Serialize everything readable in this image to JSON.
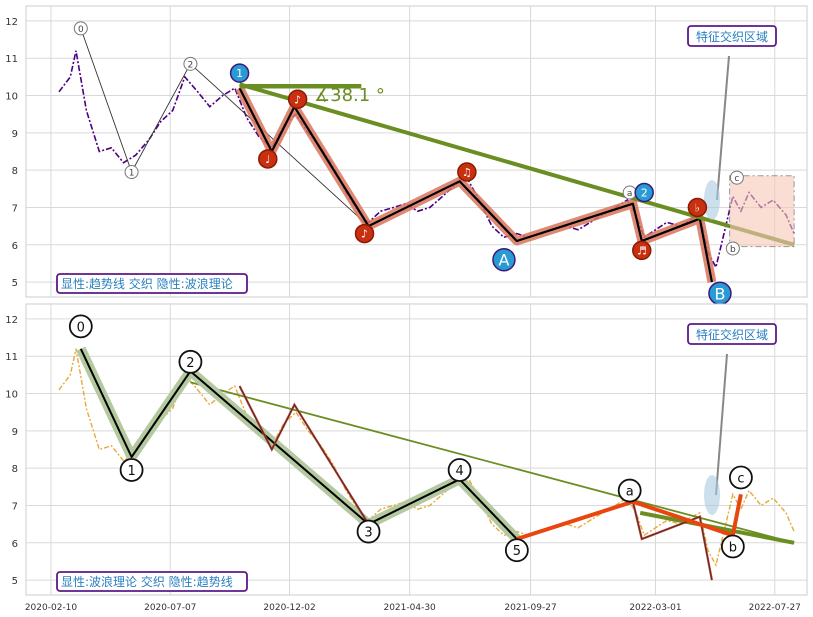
{
  "chart_data": [
    {
      "type": "line",
      "panel": "top",
      "ylim": [
        4.6,
        12.4
      ],
      "y_ticks": [
        5,
        6,
        7,
        8,
        9,
        10,
        11,
        12
      ],
      "grid": true,
      "colors": {
        "price": "#4b0082",
        "trend": "#6b8e23",
        "wave": "#000000",
        "wave_band": "#d9745c"
      },
      "label_box": "显性:趋势线 交织 隐性:波浪理论",
      "region_box": "特征交织区域",
      "angle_label": "∡38.1 °",
      "trend_line": [
        {
          "x": "2020-10-01",
          "y": 10.3
        },
        {
          "x": "2022-08-20",
          "y": 6.0
        }
      ],
      "angle_ray": [
        {
          "x": "2020-10-01",
          "y": 10.25
        },
        {
          "x": "2021-03-01",
          "y": 10.25
        }
      ],
      "wave_path": [
        {
          "x": "2020-10-01",
          "y": 10.2
        },
        {
          "x": "2020-11-10",
          "y": 8.5
        },
        {
          "x": "2020-12-08",
          "y": 9.7
        },
        {
          "x": "2021-03-10",
          "y": 6.5
        },
        {
          "x": "2021-07-01",
          "y": 7.7
        },
        {
          "x": "2021-09-10",
          "y": 6.1
        },
        {
          "x": "2022-02-01",
          "y": 7.1
        },
        {
          "x": "2022-02-12",
          "y": 6.1
        },
        {
          "x": "2022-04-25",
          "y": 6.7
        },
        {
          "x": "2022-05-10",
          "y": 5.0
        }
      ],
      "minor_markers": [
        {
          "label": "0",
          "x": "2020-03-18",
          "y": 11.8
        },
        {
          "label": "1",
          "x": "2020-05-20",
          "y": 7.95
        },
        {
          "label": "2",
          "x": "2020-08-01",
          "y": 10.85
        },
        {
          "label": "a",
          "x": "2022-01-28",
          "y": 7.4
        },
        {
          "label": "c",
          "x": "2022-06-10",
          "y": 7.8
        },
        {
          "label": "b",
          "x": "2022-06-05",
          "y": 5.9
        }
      ],
      "markers": [
        {
          "label": "1",
          "kind": "blue",
          "x": "2020-10-01",
          "y": 10.6
        },
        {
          "label": "♩",
          "kind": "red",
          "x": "2020-11-05",
          "y": 8.3
        },
        {
          "label": "♪",
          "kind": "red",
          "x": "2020-12-12",
          "y": 9.9
        },
        {
          "label": "♪",
          "kind": "red",
          "x": "2021-03-05",
          "y": 6.3
        },
        {
          "label": "♫",
          "kind": "red",
          "x": "2021-07-10",
          "y": 7.95
        },
        {
          "label": "A",
          "kind": "blue_big",
          "x": "2021-08-25",
          "y": 5.6
        },
        {
          "label": "2",
          "kind": "blue",
          "x": "2022-02-15",
          "y": 7.4
        },
        {
          "label": "♬",
          "kind": "red",
          "x": "2022-02-12",
          "y": 5.85
        },
        {
          "label": "♭",
          "kind": "red",
          "x": "2022-04-22",
          "y": 7.0
        },
        {
          "label": "B",
          "kind": "blue_big",
          "x": "2022-05-20",
          "y": 4.7
        }
      ],
      "price_series": [
        {
          "x": "2020-02-20",
          "y": 10.1
        },
        {
          "x": "2020-03-05",
          "y": 10.5
        },
        {
          "x": "2020-03-12",
          "y": 11.2
        },
        {
          "x": "2020-03-25",
          "y": 9.6
        },
        {
          "x": "2020-04-10",
          "y": 8.5
        },
        {
          "x": "2020-04-25",
          "y": 8.6
        },
        {
          "x": "2020-05-10",
          "y": 8.2
        },
        {
          "x": "2020-05-25",
          "y": 8.4
        },
        {
          "x": "2020-06-10",
          "y": 8.8
        },
        {
          "x": "2020-06-25",
          "y": 9.3
        },
        {
          "x": "2020-07-10",
          "y": 9.6
        },
        {
          "x": "2020-07-25",
          "y": 10.5
        },
        {
          "x": "2020-08-10",
          "y": 10.1
        },
        {
          "x": "2020-08-25",
          "y": 9.7
        },
        {
          "x": "2020-09-10",
          "y": 10.0
        },
        {
          "x": "2020-09-25",
          "y": 10.2
        },
        {
          "x": "2020-10-10",
          "y": 9.4
        },
        {
          "x": "2020-10-25",
          "y": 8.9
        },
        {
          "x": "2020-11-10",
          "y": 8.6
        },
        {
          "x": "2020-11-25",
          "y": 9.2
        },
        {
          "x": "2020-12-10",
          "y": 9.5
        },
        {
          "x": "2020-12-25",
          "y": 9.0
        },
        {
          "x": "2021-01-10",
          "y": 8.6
        },
        {
          "x": "2021-01-25",
          "y": 8.1
        },
        {
          "x": "2021-02-10",
          "y": 7.4
        },
        {
          "x": "2021-02-25",
          "y": 6.9
        },
        {
          "x": "2021-03-10",
          "y": 6.6
        },
        {
          "x": "2021-03-25",
          "y": 6.9
        },
        {
          "x": "2021-04-10",
          "y": 7.0
        },
        {
          "x": "2021-04-25",
          "y": 7.1
        },
        {
          "x": "2021-05-10",
          "y": 6.9
        },
        {
          "x": "2021-05-25",
          "y": 7.0
        },
        {
          "x": "2021-06-10",
          "y": 7.3
        },
        {
          "x": "2021-06-25",
          "y": 7.6
        },
        {
          "x": "2021-07-10",
          "y": 7.8
        },
        {
          "x": "2021-07-25",
          "y": 7.2
        },
        {
          "x": "2021-08-10",
          "y": 6.5
        },
        {
          "x": "2021-08-25",
          "y": 6.2
        },
        {
          "x": "2021-09-10",
          "y": 6.3
        },
        {
          "x": "2021-09-25",
          "y": 6.2
        },
        {
          "x": "2021-10-10",
          "y": 6.3
        },
        {
          "x": "2021-10-25",
          "y": 6.4
        },
        {
          "x": "2021-11-10",
          "y": 6.5
        },
        {
          "x": "2021-11-25",
          "y": 6.4
        },
        {
          "x": "2021-12-10",
          "y": 6.6
        },
        {
          "x": "2021-12-25",
          "y": 6.8
        },
        {
          "x": "2022-01-10",
          "y": 7.0
        },
        {
          "x": "2022-01-25",
          "y": 7.2
        },
        {
          "x": "2022-02-05",
          "y": 6.8
        },
        {
          "x": "2022-02-15",
          "y": 6.2
        },
        {
          "x": "2022-03-01",
          "y": 6.4
        },
        {
          "x": "2022-03-15",
          "y": 6.6
        },
        {
          "x": "2022-04-01",
          "y": 6.5
        },
        {
          "x": "2022-04-15",
          "y": 6.7
        },
        {
          "x": "2022-04-25",
          "y": 6.8
        },
        {
          "x": "2022-05-05",
          "y": 5.8
        },
        {
          "x": "2022-05-15",
          "y": 5.4
        },
        {
          "x": "2022-05-25",
          "y": 6.3
        },
        {
          "x": "2022-06-05",
          "y": 7.3
        },
        {
          "x": "2022-06-15",
          "y": 6.9
        },
        {
          "x": "2022-06-25",
          "y": 7.4
        },
        {
          "x": "2022-07-10",
          "y": 7.0
        },
        {
          "x": "2022-07-25",
          "y": 7.2
        },
        {
          "x": "2022-08-10",
          "y": 6.8
        },
        {
          "x": "2022-08-20",
          "y": 6.3
        }
      ]
    },
    {
      "type": "line",
      "panel": "bottom",
      "ylim": [
        4.6,
        12.4
      ],
      "y_ticks": [
        5,
        6,
        7,
        8,
        9,
        10,
        11,
        12
      ],
      "x_ticks": [
        "2020-02-10",
        "2020-07-07",
        "2020-12-02",
        "2021-04-30",
        "2021-09-27",
        "2022-03-01",
        "2022-07-27"
      ],
      "grid": true,
      "colors": {
        "price": "#e8a93a",
        "trend": "#6b8e23",
        "wave": "#000000",
        "wave_band": "#b5c9a0",
        "orange": "#e8460e"
      },
      "label_box": "显性:波浪理论 交织 隐性:趋势线",
      "region_box": "特征交织区域",
      "trend_line": [
        {
          "x": "2020-08-01",
          "y": 10.3
        },
        {
          "x": "2022-08-20",
          "y": 6.0
        }
      ],
      "wave_path": [
        {
          "x": "2020-03-18",
          "y": 11.2
        },
        {
          "x": "2020-05-20",
          "y": 8.3
        },
        {
          "x": "2020-08-01",
          "y": 10.6
        },
        {
          "x": "2021-03-10",
          "y": 6.5
        },
        {
          "x": "2021-07-01",
          "y": 7.7
        },
        {
          "x": "2021-09-10",
          "y": 6.1
        }
      ],
      "thin_path": [
        {
          "x": "2020-10-01",
          "y": 10.2
        },
        {
          "x": "2020-11-10",
          "y": 8.5
        },
        {
          "x": "2020-12-08",
          "y": 9.7
        },
        {
          "x": "2021-03-10",
          "y": 6.5
        }
      ],
      "thin_path_2": [
        {
          "x": "2022-02-01",
          "y": 7.1
        },
        {
          "x": "2022-02-12",
          "y": 6.1
        },
        {
          "x": "2022-04-25",
          "y": 6.7
        },
        {
          "x": "2022-05-10",
          "y": 5.0
        }
      ],
      "orange_path": [
        {
          "x": "2021-09-10",
          "y": 6.1
        },
        {
          "x": "2022-02-01",
          "y": 7.1
        },
        {
          "x": "2022-06-05",
          "y": 6.2
        },
        {
          "x": "2022-06-15",
          "y": 7.3
        }
      ],
      "markers": [
        {
          "label": "0",
          "x": "2020-03-18",
          "y": 11.8
        },
        {
          "label": "1",
          "x": "2020-05-20",
          "y": 7.95
        },
        {
          "label": "2",
          "x": "2020-08-01",
          "y": 10.85
        },
        {
          "label": "3",
          "x": "2021-03-10",
          "y": 6.3
        },
        {
          "label": "4",
          "x": "2021-07-01",
          "y": 7.95
        },
        {
          "label": "5",
          "x": "2021-09-10",
          "y": 5.8
        },
        {
          "label": "a",
          "x": "2022-01-28",
          "y": 7.4
        },
        {
          "label": "b",
          "x": "2022-06-05",
          "y": 5.9
        },
        {
          "label": "c",
          "x": "2022-06-15",
          "y": 7.75
        }
      ],
      "price_series": [
        {
          "x": "2020-02-20",
          "y": 10.1
        },
        {
          "x": "2020-03-05",
          "y": 10.5
        },
        {
          "x": "2020-03-12",
          "y": 11.2
        },
        {
          "x": "2020-03-25",
          "y": 9.6
        },
        {
          "x": "2020-04-10",
          "y": 8.5
        },
        {
          "x": "2020-04-25",
          "y": 8.6
        },
        {
          "x": "2020-05-10",
          "y": 8.2
        },
        {
          "x": "2020-05-25",
          "y": 8.4
        },
        {
          "x": "2020-06-10",
          "y": 8.8
        },
        {
          "x": "2020-06-25",
          "y": 9.3
        },
        {
          "x": "2020-07-10",
          "y": 9.6
        },
        {
          "x": "2020-07-25",
          "y": 10.5
        },
        {
          "x": "2020-08-10",
          "y": 10.1
        },
        {
          "x": "2020-08-25",
          "y": 9.7
        },
        {
          "x": "2020-09-10",
          "y": 10.0
        },
        {
          "x": "2020-09-25",
          "y": 10.2
        },
        {
          "x": "2020-10-10",
          "y": 9.4
        },
        {
          "x": "2020-10-25",
          "y": 8.9
        },
        {
          "x": "2020-11-10",
          "y": 8.6
        },
        {
          "x": "2020-11-25",
          "y": 9.2
        },
        {
          "x": "2020-12-10",
          "y": 9.5
        },
        {
          "x": "2020-12-25",
          "y": 9.0
        },
        {
          "x": "2021-01-10",
          "y": 8.6
        },
        {
          "x": "2021-01-25",
          "y": 8.1
        },
        {
          "x": "2021-02-10",
          "y": 7.4
        },
        {
          "x": "2021-02-25",
          "y": 6.9
        },
        {
          "x": "2021-03-10",
          "y": 6.6
        },
        {
          "x": "2021-03-25",
          "y": 6.9
        },
        {
          "x": "2021-04-10",
          "y": 7.0
        },
        {
          "x": "2021-04-25",
          "y": 7.1
        },
        {
          "x": "2021-05-10",
          "y": 6.9
        },
        {
          "x": "2021-05-25",
          "y": 7.0
        },
        {
          "x": "2021-06-10",
          "y": 7.3
        },
        {
          "x": "2021-06-25",
          "y": 7.6
        },
        {
          "x": "2021-07-10",
          "y": 7.8
        },
        {
          "x": "2021-07-25",
          "y": 7.2
        },
        {
          "x": "2021-08-10",
          "y": 6.5
        },
        {
          "x": "2021-08-25",
          "y": 6.2
        },
        {
          "x": "2021-09-10",
          "y": 6.3
        },
        {
          "x": "2021-09-25",
          "y": 6.2
        },
        {
          "x": "2021-10-10",
          "y": 6.3
        },
        {
          "x": "2021-10-25",
          "y": 6.4
        },
        {
          "x": "2021-11-10",
          "y": 6.5
        },
        {
          "x": "2021-11-25",
          "y": 6.4
        },
        {
          "x": "2021-12-10",
          "y": 6.6
        },
        {
          "x": "2021-12-25",
          "y": 6.8
        },
        {
          "x": "2022-01-10",
          "y": 7.0
        },
        {
          "x": "2022-01-25",
          "y": 7.2
        },
        {
          "x": "2022-02-05",
          "y": 6.8
        },
        {
          "x": "2022-02-15",
          "y": 6.2
        },
        {
          "x": "2022-03-01",
          "y": 6.4
        },
        {
          "x": "2022-03-15",
          "y": 6.6
        },
        {
          "x": "2022-04-01",
          "y": 6.5
        },
        {
          "x": "2022-04-15",
          "y": 6.7
        },
        {
          "x": "2022-04-25",
          "y": 6.8
        },
        {
          "x": "2022-05-05",
          "y": 5.8
        },
        {
          "x": "2022-05-15",
          "y": 5.4
        },
        {
          "x": "2022-05-25",
          "y": 6.3
        },
        {
          "x": "2022-06-05",
          "y": 7.3
        },
        {
          "x": "2022-06-15",
          "y": 6.9
        },
        {
          "x": "2022-06-25",
          "y": 7.4
        },
        {
          "x": "2022-07-10",
          "y": 7.0
        },
        {
          "x": "2022-07-25",
          "y": 7.2
        },
        {
          "x": "2022-08-10",
          "y": 6.8
        },
        {
          "x": "2022-08-20",
          "y": 6.3
        }
      ]
    }
  ]
}
